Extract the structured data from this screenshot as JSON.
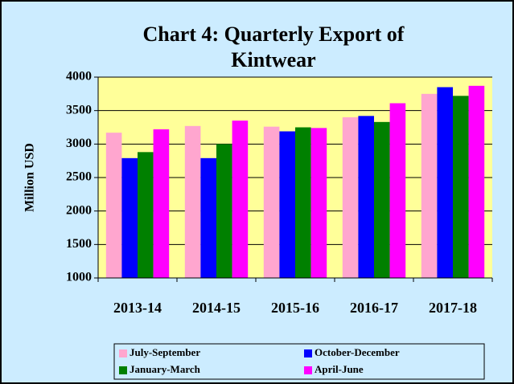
{
  "chart_data": {
    "type": "bar",
    "title": [
      "Chart 4: Quarterly Export of",
      "Kintwear"
    ],
    "y_label": "Million USD",
    "categories": [
      "2013-14",
      "2014-15",
      "2015-16",
      "2016-17",
      "2017-18"
    ],
    "series": [
      {
        "name": "July-September",
        "color": "#ffa6cf",
        "values": [
          3170,
          3270,
          3260,
          3400,
          3750
        ]
      },
      {
        "name": "October-December",
        "color": "#0000ff",
        "values": [
          2790,
          2790,
          3190,
          3420,
          3850
        ]
      },
      {
        "name": "January-March",
        "color": "#008000",
        "values": [
          2880,
          3000,
          3250,
          3330,
          3720
        ]
      },
      {
        "name": "April-June",
        "color": "#ff00ff",
        "values": [
          3220,
          3350,
          3240,
          3610,
          3870
        ]
      }
    ],
    "ylim": [
      1000,
      4000
    ],
    "yticks": [
      1000,
      1500,
      2000,
      2500,
      3000,
      3500,
      4000
    ]
  }
}
